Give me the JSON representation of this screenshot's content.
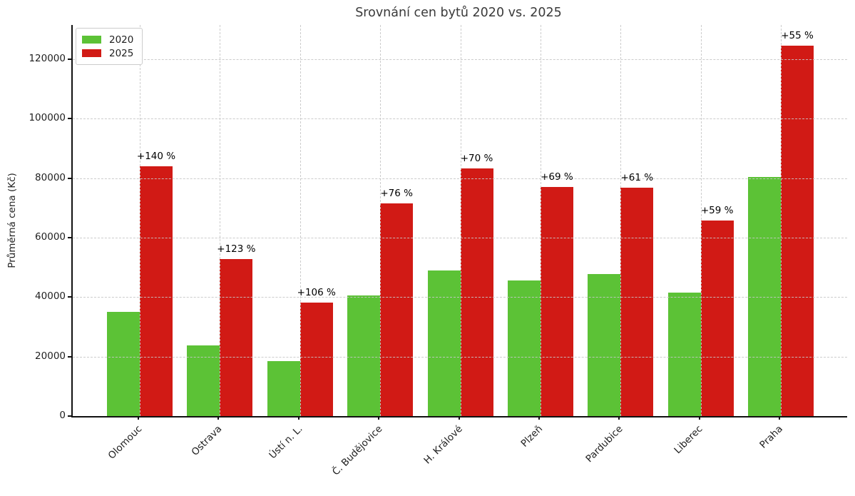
{
  "chart_data": {
    "type": "bar",
    "title": "Srovnání cen bytů 2020 vs. 2025",
    "ylabel": "Průměrná cena (Kč)",
    "xlabel": "",
    "categories": [
      "Olomouc",
      "Ostrava",
      "Ústí n. L.",
      "Č. Budějovice",
      "H. Králové",
      "Plzeň",
      "Pardubice",
      "Liberec",
      "Praha"
    ],
    "series": [
      {
        "name": "2020",
        "color": "#5cc236",
        "values": [
          35000,
          23700,
          18500,
          40600,
          49000,
          45600,
          47700,
          41400,
          80300
        ]
      },
      {
        "name": "2025",
        "color": "#d11a15",
        "values": [
          84000,
          52900,
          38100,
          71500,
          83300,
          77000,
          76800,
          65800,
          124500
        ]
      }
    ],
    "bar_labels": {
      "series": "2025",
      "texts": [
        "+140 %",
        "+123 %",
        "+106 %",
        "+76 %",
        "+70 %",
        "+69 %",
        "+61 %",
        "+59 %",
        "+55 %"
      ]
    },
    "y_ticks": [
      0,
      20000,
      40000,
      60000,
      80000,
      100000,
      120000
    ],
    "ylim": [
      0,
      131500
    ],
    "grid": {
      "horizontal": true,
      "vertical": true,
      "style": "dashed",
      "color": "#c6c6c6"
    },
    "legend": {
      "position": "upper-left"
    },
    "colors": {
      "spine": "#111111",
      "title": "#3a3a3a",
      "tick_label": "#1f1f1f",
      "annotation": "#000000"
    }
  }
}
